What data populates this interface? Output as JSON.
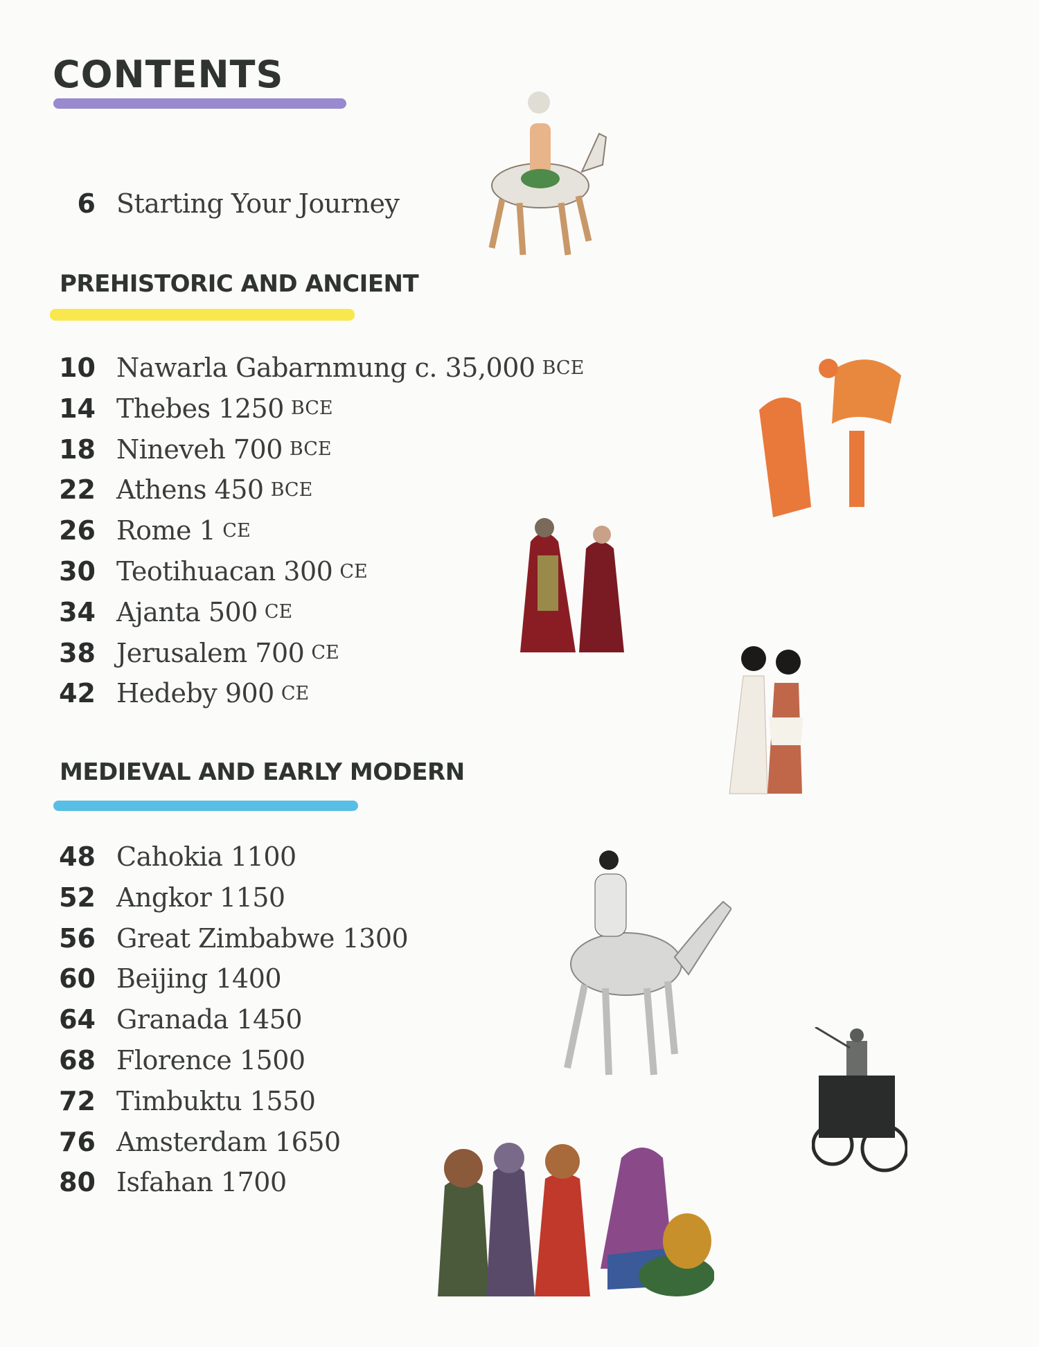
{
  "page": {
    "title": "CONTENTS"
  },
  "colors": {
    "purple_bar": "#8e7cc9",
    "yellow_bar": "#f7e53a",
    "blue_bar": "#47b7e0"
  },
  "intro": {
    "page": "6",
    "label": "Starting Your Journey"
  },
  "sections": [
    {
      "heading": "PREHISTORIC AND ANCIENT",
      "entries": [
        {
          "page": "10",
          "label": "Nawarla Gabarnmung c. 35,000",
          "era": "BCE"
        },
        {
          "page": "14",
          "label": "Thebes 1250",
          "era": "BCE"
        },
        {
          "page": "18",
          "label": "Nineveh 700",
          "era": "BCE"
        },
        {
          "page": "22",
          "label": "Athens 450",
          "era": "BCE"
        },
        {
          "page": "26",
          "label": "Rome 1",
          "era": "CE"
        },
        {
          "page": "30",
          "label": "Teotihuacan 300",
          "era": "CE"
        },
        {
          "page": "34",
          "label": "Ajanta 500",
          "era": "CE"
        },
        {
          "page": "38",
          "label": "Jerusalem 700",
          "era": "CE"
        },
        {
          "page": "42",
          "label": "Hedeby 900",
          "era": "CE"
        }
      ]
    },
    {
      "heading": "MEDIEVAL AND EARLY MODERN",
      "entries": [
        {
          "page": "48",
          "label": "Cahokia 1100"
        },
        {
          "page": "52",
          "label": "Angkor 1150"
        },
        {
          "page": "56",
          "label": "Great Zimbabwe 1300"
        },
        {
          "page": "60",
          "label": "Beijing 1400"
        },
        {
          "page": "64",
          "label": "Granada 1450"
        },
        {
          "page": "68",
          "label": "Florence 1500"
        },
        {
          "page": "72",
          "label": "Timbuktu 1550"
        },
        {
          "page": "76",
          "label": "Amsterdam 1650"
        },
        {
          "page": "80",
          "label": "Isfahan 1700"
        }
      ]
    }
  ]
}
